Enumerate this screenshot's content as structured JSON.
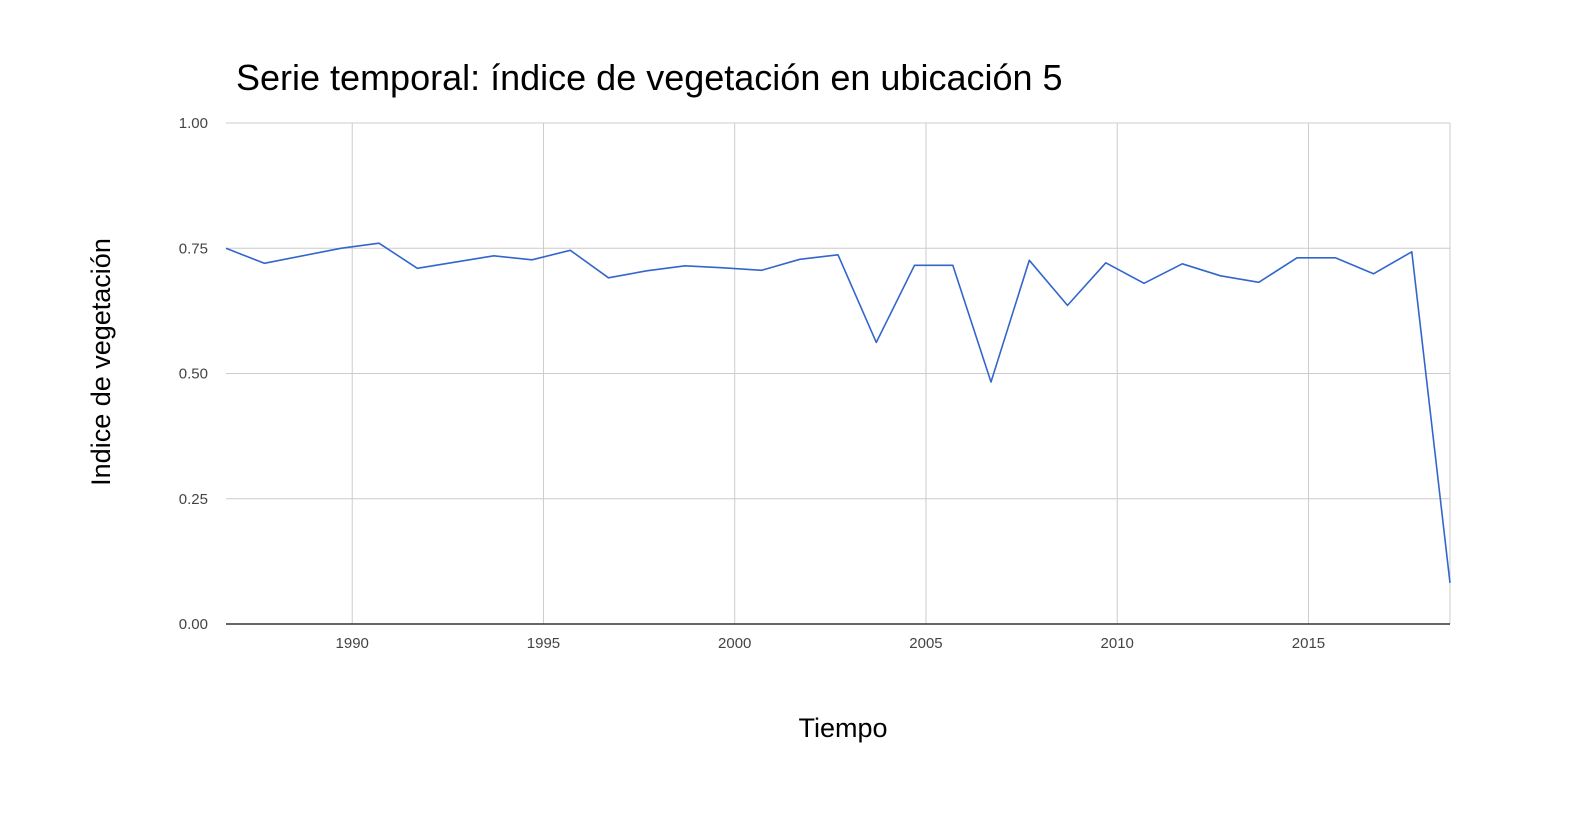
{
  "chart_data": {
    "type": "line",
    "title": "Serie temporal: índice de vegetación en ubicación 5",
    "xlabel": "Tiempo",
    "ylabel": "Indice de vegetación",
    "xlim": [
      1986.7,
      2018.7
    ],
    "ylim": [
      0,
      1
    ],
    "x_ticks": [
      1990,
      1995,
      2000,
      2005,
      2010,
      2015
    ],
    "x_tick_labels": [
      "1990",
      "1995",
      "2000",
      "2005",
      "2010",
      "2015"
    ],
    "y_ticks": [
      0,
      0.25,
      0.5,
      0.75,
      1
    ],
    "y_tick_labels": [
      "0.00",
      "0.25",
      "0.50",
      "0.75",
      "1.00"
    ],
    "grid": true,
    "legend": "none",
    "series": [
      {
        "color": "#3366cc",
        "x": [
          1986.7,
          1987.7,
          1989.7,
          1990.7,
          1991.7,
          1993.7,
          1994.7,
          1995.7,
          1996.7,
          1997.7,
          1998.7,
          1999.7,
          2000.7,
          2001.7,
          2002.7,
          2003.7,
          2004.7,
          2005.7,
          2006.7,
          2007.7,
          2008.7,
          2009.7,
          2010.7,
          2011.7,
          2012.7,
          2013.7,
          2014.7,
          2015.7,
          2016.7,
          2017.7,
          2018.7
        ],
        "values": [
          0.75,
          0.72,
          0.75,
          0.76,
          0.71,
          0.735,
          0.727,
          0.746,
          0.691,
          0.705,
          0.715,
          0.711,
          0.706,
          0.728,
          0.737,
          0.562,
          0.716,
          0.716,
          0.483,
          0.726,
          0.636,
          0.721,
          0.68,
          0.719,
          0.695,
          0.682,
          0.731,
          0.731,
          0.699,
          0.743,
          0.082
        ]
      }
    ]
  }
}
